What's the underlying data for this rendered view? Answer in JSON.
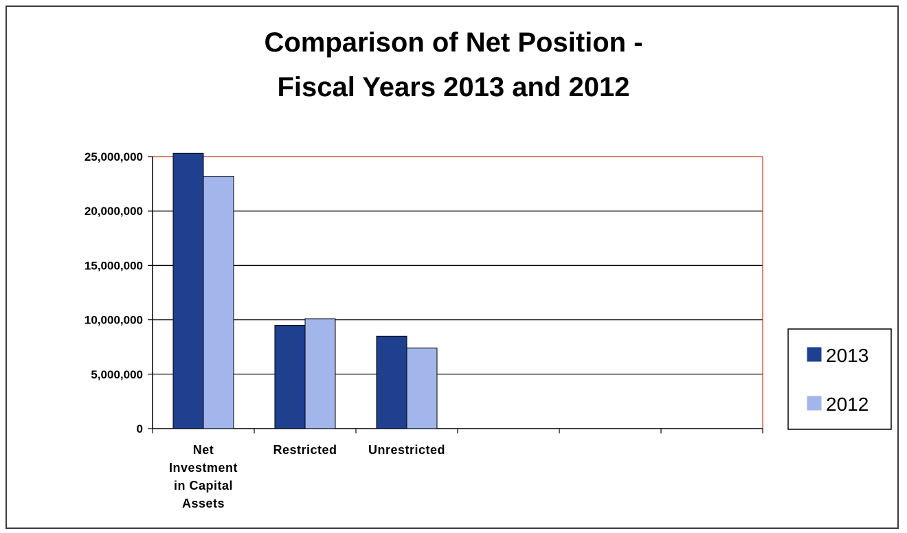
{
  "chart_data": {
    "type": "bar",
    "title_lines": [
      "Comparison of Net Position -",
      "Fiscal Years 2013 and 2012"
    ],
    "categories": [
      [
        "Net",
        "Investment",
        "in Capital",
        "Assets"
      ],
      [
        "Restricted"
      ],
      [
        "Unrestricted"
      ]
    ],
    "empty_slots": 3,
    "series": [
      {
        "name": "2013",
        "values": [
          25300000,
          9500000,
          8500000
        ],
        "color": "#1f3f8f"
      },
      {
        "name": "2012",
        "values": [
          23200000,
          10100000,
          7400000
        ],
        "color": "#a3b6ec"
      }
    ],
    "yticks": [
      "0",
      "5,000,000",
      "10,000,000",
      "15,000,000",
      "20,000,000",
      "25,000,000"
    ],
    "ylim": [
      0,
      25000000
    ],
    "grid": true,
    "plot_border_color": "#c0392b",
    "legend_position": "right"
  }
}
